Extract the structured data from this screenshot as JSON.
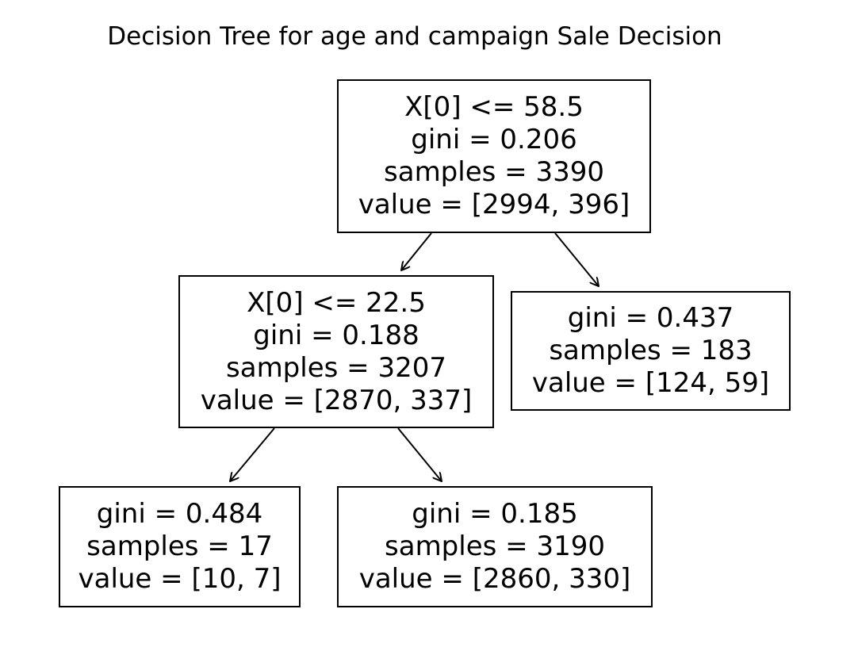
{
  "title": "Decision Tree for age and campaign Sale Decision",
  "nodes": {
    "root": {
      "split": "X[0] <= 58.5",
      "gini": "gini = 0.206",
      "samples": "samples = 3390",
      "value": "value = [2994, 396]"
    },
    "left": {
      "split": "X[0] <= 22.5",
      "gini": "gini = 0.188",
      "samples": "samples = 3207",
      "value": "value = [2870, 337]"
    },
    "right_leaf": {
      "gini": "gini = 0.437",
      "samples": "samples = 183",
      "value": "value = [124, 59]"
    },
    "left_left_leaf": {
      "gini": "gini = 0.484",
      "samples": "samples = 17",
      "value": "value = [10, 7]"
    },
    "left_right_leaf": {
      "gini": "gini = 0.185",
      "samples": "samples = 3190",
      "value": "value = [2860, 330]"
    }
  },
  "edges": [
    {
      "from": "root",
      "to": "left"
    },
    {
      "from": "root",
      "to": "right_leaf"
    },
    {
      "from": "left",
      "to": "left_left_leaf"
    },
    {
      "from": "left",
      "to": "left_right_leaf"
    }
  ]
}
